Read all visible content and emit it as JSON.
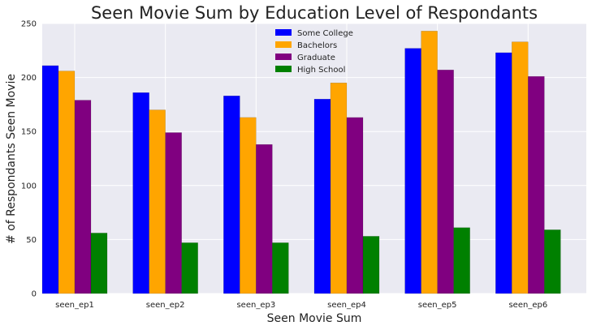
{
  "chart_data": {
    "type": "bar",
    "title": "Seen Movie Sum by Education Level of Respondants",
    "xlabel": "Seen Movie Sum",
    "ylabel": "# of Respondants Seen Movie",
    "categories": [
      "seen_ep1",
      "seen_ep2",
      "seen_ep3",
      "seen_ep4",
      "seen_ep5",
      "seen_ep6"
    ],
    "ylim": [
      0,
      250
    ],
    "yticks": [
      "0",
      "50",
      "100",
      "150",
      "200",
      "250"
    ],
    "grid": true,
    "legend_position": "top-center",
    "series": [
      {
        "name": "Some College",
        "color": "#0000ff",
        "values": [
          211,
          186,
          183,
          180,
          227,
          223
        ]
      },
      {
        "name": "Bachelors",
        "color": "#ffa500",
        "values": [
          206,
          170,
          163,
          195,
          243,
          233
        ]
      },
      {
        "name": "Graduate",
        "color": "#800080",
        "values": [
          179,
          149,
          138,
          163,
          207,
          201
        ]
      },
      {
        "name": "High School",
        "color": "#008000",
        "values": [
          56,
          47,
          47,
          53,
          61,
          59
        ]
      }
    ]
  }
}
